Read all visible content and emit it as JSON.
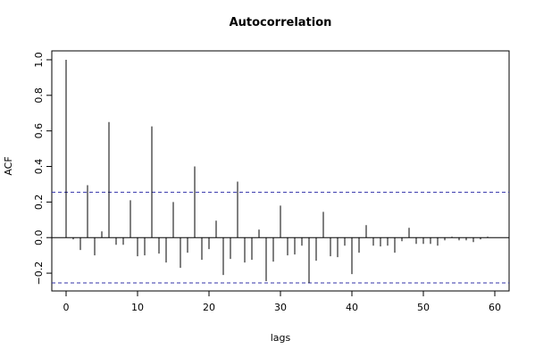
{
  "chart_data": {
    "type": "bar",
    "title": "Autocorrelation",
    "xlabel": "lags",
    "ylabel": "ACF",
    "xlim": [
      -2,
      62
    ],
    "ylim": [
      -0.3,
      1.05
    ],
    "x_ticks": [
      0,
      10,
      20,
      30,
      40,
      50,
      60
    ],
    "y_ticks": [
      -0.2,
      0.0,
      0.2,
      0.4,
      0.6,
      0.8,
      1.0
    ],
    "x_tick_labels": [
      "0",
      "10",
      "20",
      "30",
      "40",
      "50",
      "60"
    ],
    "y_tick_labels": [
      "−0.2",
      "0.0",
      "0.2",
      "0.4",
      "0.6",
      "0.8",
      "1.0"
    ],
    "confidence_bounds": [
      0.255,
      -0.255
    ],
    "zero_line": 0,
    "grid": false,
    "colors": {
      "bars": "#000000",
      "bounds": "#3333aa",
      "frame": "#000000"
    },
    "lags": [
      0,
      1,
      2,
      3,
      4,
      5,
      6,
      7,
      8,
      9,
      10,
      11,
      12,
      13,
      14,
      15,
      16,
      17,
      18,
      19,
      20,
      21,
      22,
      23,
      24,
      25,
      26,
      27,
      28,
      29,
      30,
      31,
      32,
      33,
      34,
      35,
      36,
      37,
      38,
      39,
      40,
      41,
      42,
      43,
      44,
      45,
      46,
      47,
      48,
      49,
      50,
      51,
      52,
      53,
      54,
      55,
      56,
      57,
      58,
      59
    ],
    "values": [
      1.0,
      -0.01,
      -0.07,
      0.295,
      -0.1,
      0.035,
      0.65,
      -0.04,
      -0.04,
      0.21,
      -0.105,
      -0.1,
      0.625,
      -0.09,
      -0.14,
      0.2,
      -0.17,
      -0.085,
      0.4,
      -0.125,
      -0.065,
      0.095,
      -0.21,
      -0.12,
      0.315,
      -0.14,
      -0.125,
      0.045,
      -0.245,
      -0.135,
      0.18,
      -0.1,
      -0.095,
      -0.045,
      -0.255,
      -0.13,
      0.145,
      -0.105,
      -0.11,
      -0.045,
      -0.205,
      -0.085,
      0.07,
      -0.045,
      -0.05,
      -0.045,
      -0.085,
      -0.02,
      0.055,
      -0.035,
      -0.035,
      -0.035,
      -0.045,
      -0.015,
      0.005,
      -0.015,
      -0.015,
      -0.025,
      -0.01,
      0.005
    ]
  }
}
